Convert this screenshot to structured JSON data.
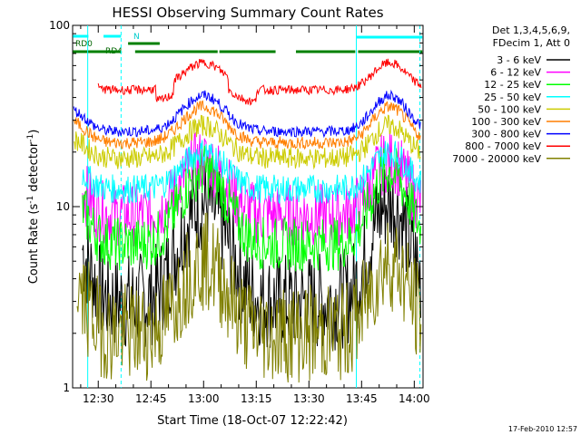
{
  "chart_data": {
    "type": "line",
    "title": "HESSI Observing Summary Count Rates",
    "xlabel": "Start Time (18-Oct-07 12:22:42)",
    "ylabel_main": "Count Rate (s",
    "ylabel_sup1": "-1",
    "ylabel_mid": " detector",
    "ylabel_sup2": "-1",
    "ylabel_end": ")",
    "yscale": "log",
    "ylim": [
      1,
      100
    ],
    "xlim_minutes": [
      742.7,
      842.5
    ],
    "x_ticks": [
      {
        "label": "12:30",
        "minute": 750
      },
      {
        "label": "12:45",
        "minute": 765
      },
      {
        "label": "13:00",
        "minute": 780
      },
      {
        "label": "13:15",
        "minute": 795
      },
      {
        "label": "13:30",
        "minute": 810
      },
      {
        "label": "13:45",
        "minute": 825
      },
      {
        "label": "14:00",
        "minute": 840
      }
    ],
    "y_ticks": [
      {
        "label": "1",
        "value": 1
      },
      {
        "label": "10",
        "value": 10
      },
      {
        "label": "100",
        "value": 100
      }
    ],
    "legend_header": [
      "Det 1,3,4,5,6,9,",
      "FDecim 1, Att 0"
    ],
    "legend_position": "right",
    "timestamp": "17-Feb-2010 12:57",
    "flags": [
      {
        "label": "RD0",
        "color": "#00ffff"
      },
      {
        "label": "N",
        "color": "#00ffff"
      },
      {
        "label": "RD4",
        "color": "#008000"
      }
    ],
    "series": [
      {
        "name": "3 - 6 keV",
        "color": "#000000"
      },
      {
        "name": "6 - 12 keV",
        "color": "#ff00ff"
      },
      {
        "name": "12 - 25 keV",
        "color": "#00ff00"
      },
      {
        "name": "25 - 50 keV",
        "color": "#00ffff"
      },
      {
        "name": "50 - 100 keV",
        "color": "#cccc00"
      },
      {
        "name": "100 - 300 keV",
        "color": "#ff7f00"
      },
      {
        "name": "300 - 800 keV",
        "color": "#0000ff"
      },
      {
        "name": "800 - 7000 keV",
        "color": "#ff0000"
      },
      {
        "name": "7000 - 20000 keV",
        "color": "#808000"
      }
    ]
  }
}
